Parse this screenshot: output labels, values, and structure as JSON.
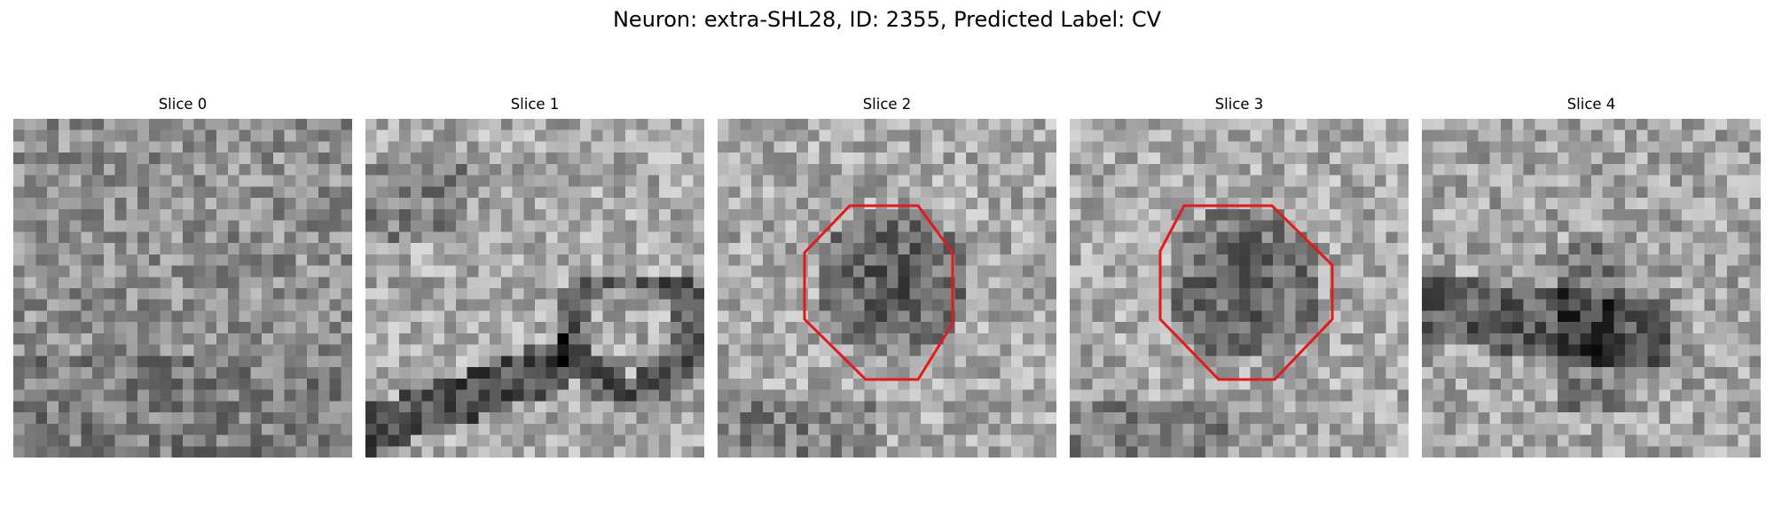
{
  "title": "Neuron: extra-SHL28, ID: 2355, Predicted Label: CV",
  "overlay_color": "#e31a1c",
  "colormap": "grayscale",
  "slices": [
    {
      "label": "Slice 0",
      "has_outline": false,
      "texture": "uniform-noise"
    },
    {
      "label": "Slice 1",
      "has_outline": false,
      "texture": "diagonal-dark-membrane"
    },
    {
      "label": "Slice 2",
      "has_outline": true,
      "texture": "dark-vesicle-center"
    },
    {
      "label": "Slice 3",
      "has_outline": true,
      "texture": "dark-vesicle-center"
    },
    {
      "label": "Slice 4",
      "has_outline": false,
      "texture": "dark-band-lower"
    }
  ]
}
